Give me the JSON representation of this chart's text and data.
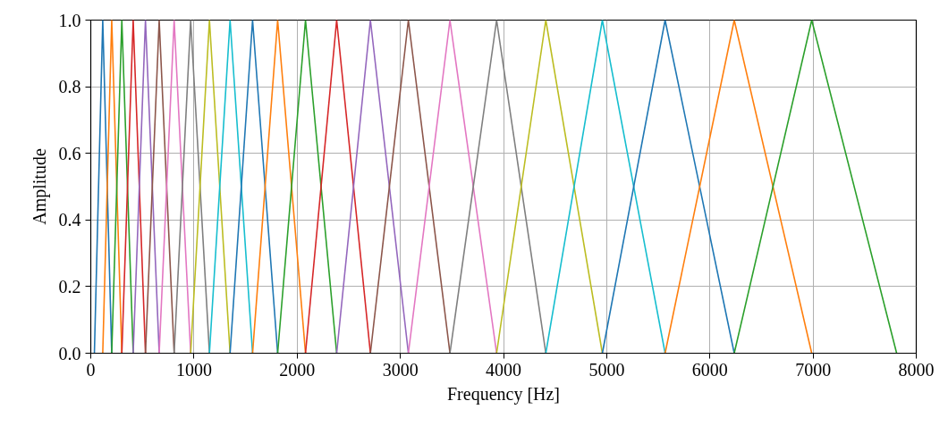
{
  "chart_data": {
    "type": "line",
    "xlabel": "Frequency [Hz]",
    "ylabel": "Amplitude",
    "xlim": [
      0,
      8000
    ],
    "ylim": [
      0,
      1
    ],
    "xticks": [
      0,
      1000,
      2000,
      3000,
      4000,
      5000,
      6000,
      7000,
      8000
    ],
    "yticks": [
      {
        "value": 0,
        "label": "0.0"
      },
      {
        "value": 0.2,
        "label": "0.2"
      },
      {
        "value": 0.4,
        "label": "0.4"
      },
      {
        "value": 0.6,
        "label": "0.6"
      },
      {
        "value": 0.8,
        "label": "0.8"
      },
      {
        "value": 1,
        "label": "1.0"
      }
    ],
    "grid": true,
    "line_style": "solid",
    "marker": "none",
    "series": [
      {
        "color": "#1f77b4",
        "x": [
          35,
          116,
          203
        ],
        "values": [
          0,
          1,
          0
        ]
      },
      {
        "color": "#ff7f0e",
        "x": [
          116,
          203,
          301
        ],
        "values": [
          0,
          1,
          0
        ]
      },
      {
        "color": "#2ca02c",
        "x": [
          203,
          301,
          411
        ],
        "values": [
          0,
          1,
          0
        ]
      },
      {
        "color": "#d62728",
        "x": [
          301,
          411,
          530
        ],
        "values": [
          0,
          1,
          0
        ]
      },
      {
        "color": "#9467bd",
        "x": [
          411,
          530,
          663
        ],
        "values": [
          0,
          1,
          0
        ]
      },
      {
        "color": "#8c564b",
        "x": [
          530,
          663,
          808
        ],
        "values": [
          0,
          1,
          0
        ]
      },
      {
        "color": "#e377c2",
        "x": [
          663,
          808,
          968
        ],
        "values": [
          0,
          1,
          0
        ]
      },
      {
        "color": "#7f7f7f",
        "x": [
          808,
          968,
          1150
        ],
        "values": [
          0,
          1,
          0
        ]
      },
      {
        "color": "#bcbd22",
        "x": [
          968,
          1150,
          1350
        ],
        "values": [
          0,
          1,
          0
        ]
      },
      {
        "color": "#17becf",
        "x": [
          1150,
          1350,
          1568
        ],
        "values": [
          0,
          1,
          0
        ]
      },
      {
        "color": "#1f77b4",
        "x": [
          1350,
          1568,
          1811
        ],
        "values": [
          0,
          1,
          0
        ]
      },
      {
        "color": "#ff7f0e",
        "x": [
          1568,
          1811,
          2081
        ],
        "values": [
          0,
          1,
          0
        ]
      },
      {
        "color": "#2ca02c",
        "x": [
          1811,
          2081,
          2383
        ],
        "values": [
          0,
          1,
          0
        ]
      },
      {
        "color": "#d62728",
        "x": [
          2081,
          2383,
          2710
        ],
        "values": [
          0,
          1,
          0
        ]
      },
      {
        "color": "#9467bd",
        "x": [
          2383,
          2710,
          3078
        ],
        "values": [
          0,
          1,
          0
        ]
      },
      {
        "color": "#8c564b",
        "x": [
          2710,
          3078,
          3481
        ],
        "values": [
          0,
          1,
          0
        ]
      },
      {
        "color": "#e377c2",
        "x": [
          3078,
          3481,
          3933
        ],
        "values": [
          0,
          1,
          0
        ]
      },
      {
        "color": "#7f7f7f",
        "x": [
          3481,
          3933,
          4410
        ],
        "values": [
          0,
          1,
          0
        ]
      },
      {
        "color": "#bcbd22",
        "x": [
          3933,
          4410,
          4958
        ],
        "values": [
          0,
          1,
          0
        ]
      },
      {
        "color": "#17becf",
        "x": [
          4410,
          4958,
          5566
        ],
        "values": [
          0,
          1,
          0
        ]
      },
      {
        "color": "#1f77b4",
        "x": [
          4958,
          5566,
          6236
        ],
        "values": [
          0,
          1,
          0
        ]
      },
      {
        "color": "#ff7f0e",
        "x": [
          5566,
          6236,
          6987
        ],
        "values": [
          0,
          1,
          0
        ]
      },
      {
        "color": "#2ca02c",
        "x": [
          6236,
          6987,
          7810
        ],
        "values": [
          0,
          1,
          0
        ]
      }
    ]
  }
}
